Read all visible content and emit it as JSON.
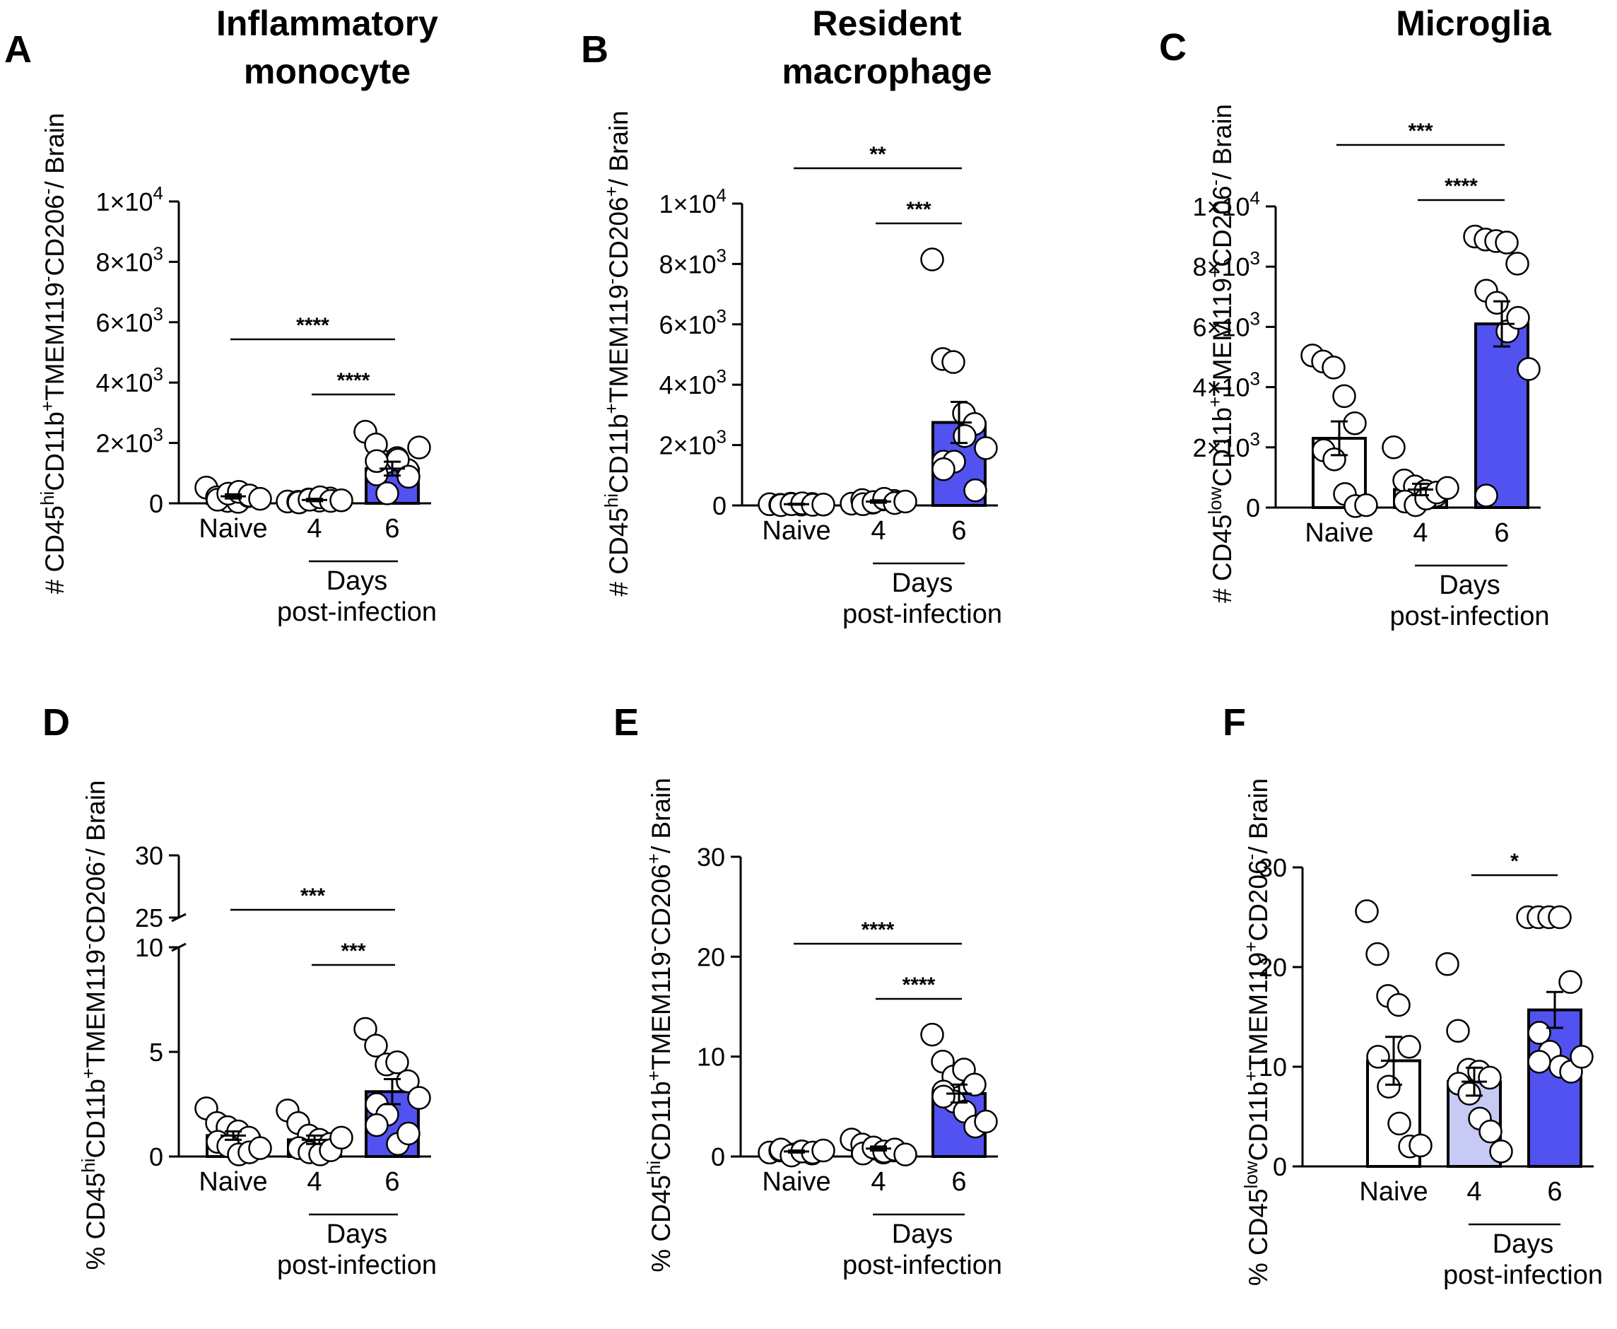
{
  "figure": {
    "days_label": "Days",
    "post_infection_label": "post-infection"
  },
  "colors": {
    "naive": "#ffffff",
    "day4": "#c6caf5",
    "day6": "#5252f0",
    "outline": "#000000"
  },
  "chart_data": [
    {
      "panel": "A",
      "type": "bar",
      "title": [
        "Inflammatory",
        "monocyte"
      ],
      "categories": [
        "Naive",
        "4",
        "6"
      ],
      "ylabel": [
        "# CD45",
        "hi",
        "CD11b",
        "+",
        "TMEM119",
        "-",
        "CD206",
        "-",
        "/ Brain"
      ],
      "yscale": "linear",
      "ylim": [
        0,
        10000
      ],
      "yticks": [
        0,
        2000,
        4000,
        6000,
        8000,
        10000
      ],
      "ytick_labels": [
        {
          "text": "0"
        },
        {
          "text": "2×10",
          "exp": "3"
        },
        {
          "text": "4×10",
          "exp": "3"
        },
        {
          "text": "6×10",
          "exp": "3"
        },
        {
          "text": "8×10",
          "exp": "3"
        },
        {
          "text": "1×10",
          "exp": "4"
        }
      ],
      "bars": [
        {
          "category": "Naive",
          "mean": 230,
          "sem": 70,
          "fill": "naive"
        },
        {
          "category": "4",
          "mean": 110,
          "sem": 40,
          "fill": "day4"
        },
        {
          "category": "6",
          "mean": 1150,
          "sem": 230,
          "fill": "day6"
        }
      ],
      "points": [
        [
          520,
          200,
          80,
          50,
          240,
          120,
          320,
          380,
          260,
          150
        ],
        [
          60,
          50,
          130,
          90,
          160,
          30,
          120,
          200,
          80,
          100
        ],
        [
          2370,
          1950,
          1370,
          1500,
          1100,
          960,
          330,
          1440,
          880,
          1850,
          1400
        ]
      ],
      "significance": [
        {
          "from": "Naive",
          "to": "6",
          "label": "****"
        },
        {
          "from": "4",
          "to": "6",
          "label": "****"
        }
      ]
    },
    {
      "panel": "B",
      "type": "bar",
      "title": [
        "Resident",
        "macrophage"
      ],
      "categories": [
        "Naive",
        "4",
        "6"
      ],
      "ylabel": [
        "# CD45",
        "hi",
        "CD11b",
        "+",
        "TMEM119",
        "-",
        "CD206",
        "+",
        "/ Brain"
      ],
      "yscale": "linear",
      "ylim": [
        0,
        10000
      ],
      "yticks": [
        0,
        2000,
        4000,
        6000,
        8000,
        10000
      ],
      "ytick_labels": [
        {
          "text": "0"
        },
        {
          "text": "2×10",
          "exp": "3"
        },
        {
          "text": "4×10",
          "exp": "3"
        },
        {
          "text": "6×10",
          "exp": "3"
        },
        {
          "text": "8×10",
          "exp": "3"
        },
        {
          "text": "1×10",
          "exp": "4"
        }
      ],
      "bars": [
        {
          "category": "Naive",
          "mean": 40,
          "sem": 15,
          "fill": "naive"
        },
        {
          "category": "4",
          "mean": 130,
          "sem": 40,
          "fill": "day4"
        },
        {
          "category": "6",
          "mean": 2750,
          "sem": 680,
          "fill": "day6"
        }
      ],
      "points": [
        [
          40,
          20,
          60,
          30,
          50,
          10,
          40,
          70,
          20,
          30
        ],
        [
          60,
          180,
          90,
          200,
          150,
          40,
          110,
          220,
          80,
          130
        ],
        [
          8150,
          4850,
          4750,
          3050,
          2700,
          1450,
          1450,
          2300,
          500,
          1900,
          1200
        ]
      ],
      "significance": [
        {
          "from": "Naive",
          "to": "6",
          "label": "**"
        },
        {
          "from": "4",
          "to": "6",
          "label": "***"
        }
      ]
    },
    {
      "panel": "C",
      "type": "bar",
      "title": [
        "Microglia"
      ],
      "categories": [
        "Naive",
        "4",
        "6"
      ],
      "ylabel": [
        "# CD45",
        "low",
        "CD11b",
        "+",
        "TMEM119",
        "+",
        "CD206",
        "-",
        "/ Brain"
      ],
      "yscale": "linear",
      "ylim": [
        0,
        10000
      ],
      "yticks": [
        0,
        2000,
        4000,
        6000,
        8000,
        10000
      ],
      "ytick_labels": [
        {
          "text": "0"
        },
        {
          "text": "2×10",
          "exp": "3"
        },
        {
          "text": "4×10",
          "exp": "3"
        },
        {
          "text": "6×10",
          "exp": "3"
        },
        {
          "text": "8×10",
          "exp": "3"
        },
        {
          "text": "1×10",
          "exp": "4"
        }
      ],
      "bars": [
        {
          "category": "Naive",
          "mean": 2300,
          "sem": 560,
          "fill": "naive"
        },
        {
          "category": "4",
          "mean": 600,
          "sem": 190,
          "fill": "day4"
        },
        {
          "category": "6",
          "mean": 6100,
          "sem": 750,
          "fill": "day6"
        }
      ],
      "points": [
        [
          5050,
          4850,
          4650,
          3700,
          2800,
          1900,
          1600,
          450,
          50,
          80
        ],
        [
          2000,
          900,
          700,
          550,
          400,
          200,
          80,
          300,
          500,
          650
        ],
        [
          9000,
          8900,
          8850,
          8800,
          8100,
          7200,
          6800,
          5850,
          6300,
          4600,
          400
        ]
      ],
      "significance": [
        {
          "from": "Naive",
          "to": "6",
          "label": "***"
        },
        {
          "from": "4",
          "to": "6",
          "label": "****"
        }
      ]
    },
    {
      "panel": "D",
      "type": "bar",
      "title": [],
      "categories": [
        "Naive",
        "4",
        "6"
      ],
      "ylabel": [
        "% CD45",
        "hi",
        "CD11b",
        "+",
        "TMEM119",
        "-",
        "CD206",
        "-",
        "/ Brain"
      ],
      "yscale": "broken",
      "ylim": [
        0,
        30
      ],
      "axis_break": [
        10,
        25
      ],
      "yticks": [
        0,
        5,
        10,
        25,
        30
      ],
      "ytick_labels": [
        {
          "text": "0"
        },
        {
          "text": "5"
        },
        {
          "text": "10"
        },
        {
          "text": "25"
        },
        {
          "text": "30"
        }
      ],
      "bars": [
        {
          "category": "Naive",
          "mean": 1.0,
          "sem": 0.2,
          "fill": "naive"
        },
        {
          "category": "4",
          "mean": 0.8,
          "sem": 0.2,
          "fill": "day4"
        },
        {
          "category": "6",
          "mean": 3.1,
          "sem": 0.6,
          "fill": "day6"
        }
      ],
      "points": [
        [
          2.3,
          1.6,
          1.4,
          1.2,
          0.9,
          0.7,
          0.5,
          0.1,
          0.2,
          0.4
        ],
        [
          2.2,
          1.6,
          1.0,
          0.8,
          0.6,
          0.4,
          0.2,
          0.1,
          0.3,
          0.9
        ],
        [
          6.1,
          5.3,
          4.4,
          4.5,
          3.6,
          2.5,
          2.0,
          0.6,
          1.1,
          2.8,
          1.5
        ]
      ],
      "significance": [
        {
          "from": "Naive",
          "to": "6",
          "label": "***"
        },
        {
          "from": "4",
          "to": "6",
          "label": "***"
        }
      ]
    },
    {
      "panel": "E",
      "type": "bar",
      "title": [],
      "categories": [
        "Naive",
        "4",
        "6"
      ],
      "ylabel": [
        "% CD45",
        "hi",
        "CD11b",
        "+",
        "TMEM119",
        "-",
        "CD206",
        "+",
        "/ Brain"
      ],
      "yscale": "linear",
      "ylim": [
        0,
        30
      ],
      "yticks": [
        0,
        10,
        20,
        30
      ],
      "ytick_labels": [
        {
          "text": "0"
        },
        {
          "text": "10"
        },
        {
          "text": "20"
        },
        {
          "text": "30"
        }
      ],
      "bars": [
        {
          "category": "Naive",
          "mean": 0.5,
          "sem": 0.1,
          "fill": "naive"
        },
        {
          "category": "4",
          "mean": 0.8,
          "sem": 0.2,
          "fill": "day4"
        },
        {
          "category": "6",
          "mean": 6.3,
          "sem": 0.9,
          "fill": "day6"
        }
      ],
      "points": [
        [
          0.4,
          0.6,
          0.2,
          0.5,
          0.3,
          0.7,
          0.1,
          0.5,
          0.4,
          0.6
        ],
        [
          1.7,
          1.2,
          0.8,
          0.4,
          0.6,
          0.3,
          0.9,
          0.5,
          0.7,
          0.2
        ],
        [
          12.2,
          9.5,
          8.0,
          8.7,
          7.2,
          6.5,
          5.5,
          4.5,
          3.0,
          3.5,
          6.0
        ]
      ],
      "significance": [
        {
          "from": "Naive",
          "to": "6",
          "label": "****"
        },
        {
          "from": "4",
          "to": "6",
          "label": "****"
        }
      ]
    },
    {
      "panel": "F",
      "type": "bar",
      "title": [],
      "categories": [
        "Naive",
        "4",
        "6"
      ],
      "ylabel": [
        "% CD45",
        "low",
        "CD11b",
        "+",
        "TMEM119",
        "+",
        "CD206",
        "-",
        "/ Brain"
      ],
      "yscale": "linear",
      "ylim": [
        0,
        30
      ],
      "yticks": [
        0,
        10,
        20,
        30
      ],
      "ytick_labels": [
        {
          "text": "0"
        },
        {
          "text": "10"
        },
        {
          "text": "20"
        },
        {
          "text": "30"
        }
      ],
      "bars": [
        {
          "category": "Naive",
          "mean": 10.6,
          "sem": 2.4,
          "fill": "naive"
        },
        {
          "category": "4",
          "mean": 8.5,
          "sem": 1.4,
          "fill": "day4"
        },
        {
          "category": "6",
          "mean": 15.7,
          "sem": 1.8,
          "fill": "day6"
        }
      ],
      "points": [
        [
          25.6,
          21.3,
          17.1,
          16.2,
          12.0,
          11.0,
          8.0,
          4.3,
          2.0,
          2.1
        ],
        [
          20.3,
          13.6,
          9.7,
          9.5,
          8.9,
          8.3,
          7.3,
          4.8,
          3.5,
          1.5
        ],
        [
          25.0,
          25.0,
          25.0,
          25.0,
          18.5,
          13.4,
          11.5,
          10.0,
          9.5,
          11.0,
          10.5
        ]
      ],
      "significance": [
        {
          "from": "4",
          "to": "6",
          "label": "*"
        }
      ]
    }
  ]
}
